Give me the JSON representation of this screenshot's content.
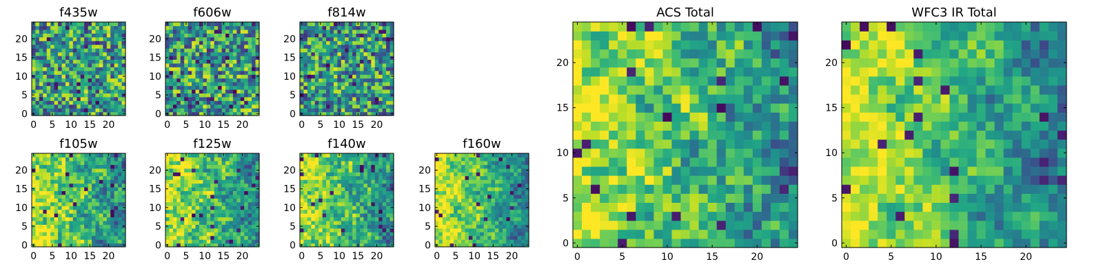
{
  "figure": {
    "panels": [
      {
        "title": "f435w",
        "seed": 11,
        "bias": "flat"
      },
      {
        "title": "f606w",
        "seed": 22,
        "bias": "flat"
      },
      {
        "title": "f814w",
        "seed": 33,
        "bias": "flat"
      },
      {
        "title": "f105w",
        "seed": 44,
        "bias": "gradient"
      },
      {
        "title": "f125w",
        "seed": 55,
        "bias": "gradient"
      },
      {
        "title": "f140w",
        "seed": 66,
        "bias": "gradient"
      },
      {
        "title": "f160w",
        "seed": 77,
        "bias": "gradient-strong"
      },
      {
        "title": "ACS Total",
        "seed": 88,
        "bias": "gradient"
      },
      {
        "title": "WFC3 IR Total",
        "seed": 99,
        "bias": "gradient-strong"
      }
    ]
  },
  "chart_data": [
    {
      "type": "heatmap",
      "title": "f435w",
      "grid_size": [
        25,
        25
      ],
      "colormap": "viridis",
      "xticks": [
        0,
        5,
        10,
        15,
        20
      ],
      "yticks": [
        0,
        5,
        10,
        15,
        20
      ],
      "xlim": [
        0,
        24
      ],
      "ylim": [
        0,
        24
      ]
    },
    {
      "type": "heatmap",
      "title": "f606w",
      "grid_size": [
        25,
        25
      ],
      "colormap": "viridis",
      "xticks": [
        0,
        5,
        10,
        15,
        20
      ],
      "yticks": [
        0,
        5,
        10,
        15,
        20
      ],
      "xlim": [
        0,
        24
      ],
      "ylim": [
        0,
        24
      ]
    },
    {
      "type": "heatmap",
      "title": "f814w",
      "grid_size": [
        25,
        25
      ],
      "colormap": "viridis",
      "xticks": [
        0,
        5,
        10,
        15,
        20
      ],
      "yticks": [
        0,
        5,
        10,
        15,
        20
      ],
      "xlim": [
        0,
        24
      ],
      "ylim": [
        0,
        24
      ]
    },
    {
      "type": "heatmap",
      "title": "f105w",
      "grid_size": [
        25,
        25
      ],
      "colormap": "viridis",
      "xticks": [
        0,
        5,
        10,
        15,
        20
      ],
      "yticks": [
        0,
        5,
        10,
        15,
        20
      ],
      "xlim": [
        0,
        24
      ],
      "ylim": [
        0,
        24
      ]
    },
    {
      "type": "heatmap",
      "title": "f125w",
      "grid_size": [
        25,
        25
      ],
      "colormap": "viridis",
      "xticks": [
        0,
        5,
        10,
        15,
        20
      ],
      "yticks": [
        0,
        5,
        10,
        15,
        20
      ],
      "xlim": [
        0,
        24
      ],
      "ylim": [
        0,
        24
      ]
    },
    {
      "type": "heatmap",
      "title": "f140w",
      "grid_size": [
        25,
        25
      ],
      "colormap": "viridis",
      "xticks": [
        0,
        5,
        10,
        15,
        20
      ],
      "yticks": [
        0,
        5,
        10,
        15,
        20
      ],
      "xlim": [
        0,
        24
      ],
      "ylim": [
        0,
        24
      ]
    },
    {
      "type": "heatmap",
      "title": "f160w",
      "grid_size": [
        25,
        25
      ],
      "colormap": "viridis",
      "xticks": [
        0,
        5,
        10,
        15,
        20
      ],
      "yticks": [
        0,
        5,
        10,
        15,
        20
      ],
      "xlim": [
        0,
        24
      ],
      "ylim": [
        0,
        24
      ]
    },
    {
      "type": "heatmap",
      "title": "ACS Total",
      "grid_size": [
        25,
        25
      ],
      "colormap": "viridis",
      "xticks": [
        0,
        5,
        10,
        15,
        20
      ],
      "yticks": [
        0,
        5,
        10,
        15,
        20
      ],
      "xlim": [
        0,
        24
      ],
      "ylim": [
        0,
        24
      ]
    },
    {
      "type": "heatmap",
      "title": "WFC3 IR Total",
      "grid_size": [
        25,
        25
      ],
      "colormap": "viridis",
      "xticks": [
        0,
        5,
        10,
        15,
        20
      ],
      "yticks": [
        0,
        5,
        10,
        15,
        20
      ],
      "xlim": [
        0,
        24
      ],
      "ylim": [
        0,
        24
      ]
    }
  ]
}
